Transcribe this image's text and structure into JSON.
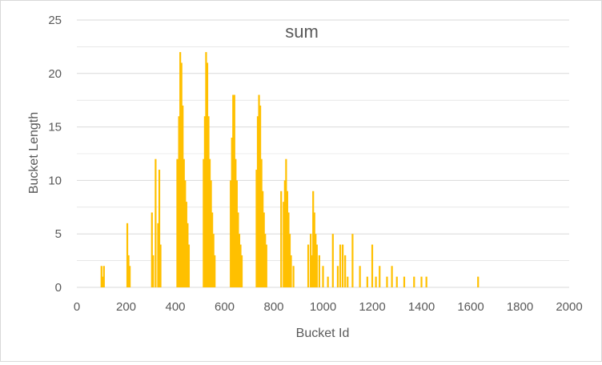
{
  "chart_data": {
    "type": "bar",
    "title": "sum",
    "xlabel": "Bucket Id",
    "ylabel": "Bucket Length",
    "xlim": [
      0,
      2000
    ],
    "ylim": [
      0,
      25
    ],
    "x_ticks": [
      "0",
      "200",
      "400",
      "600",
      "800",
      "1000",
      "1200",
      "1400",
      "1600",
      "1800",
      "2000"
    ],
    "y_ticks": [
      "0",
      "5",
      "10",
      "15",
      "20",
      "25"
    ],
    "grid": true,
    "legend": "none",
    "bar_color": "#FFC000",
    "gridline_color": "#D9D9D9",
    "series": [
      {
        "x": [
          100,
          105,
          110,
          205,
          210,
          215,
          305,
          310,
          320,
          330,
          335,
          340,
          408,
          415,
          420,
          425,
          430,
          435,
          440,
          445,
          450,
          455,
          515,
          520,
          525,
          530,
          535,
          540,
          545,
          550,
          555,
          560,
          625,
          630,
          635,
          640,
          645,
          650,
          655,
          660,
          665,
          670,
          730,
          735,
          740,
          745,
          750,
          755,
          760,
          765,
          770,
          830,
          840,
          845,
          850,
          855,
          860,
          865,
          870,
          880,
          940,
          950,
          955,
          960,
          965,
          970,
          975,
          985,
          1000,
          1020,
          1040,
          1060,
          1070,
          1080,
          1090,
          1100,
          1120,
          1150,
          1180,
          1200,
          1215,
          1230,
          1260,
          1280,
          1300,
          1330,
          1370,
          1400,
          1420,
          1630
        ],
        "values": [
          2,
          1,
          2,
          6,
          3,
          2,
          7,
          3,
          12,
          6,
          11,
          4,
          12,
          16,
          22,
          21,
          17,
          12,
          10,
          8,
          6,
          4,
          12,
          16,
          22,
          21,
          16,
          12,
          10,
          7,
          5,
          3,
          10,
          14,
          18,
          18,
          12,
          10,
          7,
          5,
          4,
          3,
          11,
          16,
          18,
          17,
          12,
          9,
          7,
          5,
          4,
          9,
          8,
          10,
          12,
          9,
          7,
          5,
          3,
          2,
          4,
          5,
          3,
          9,
          7,
          5,
          4,
          3,
          2,
          1,
          5,
          2,
          4,
          4,
          3,
          1,
          5,
          2,
          1,
          4,
          1,
          2,
          1,
          2,
          1,
          1,
          1,
          1,
          1,
          1
        ]
      }
    ]
  }
}
